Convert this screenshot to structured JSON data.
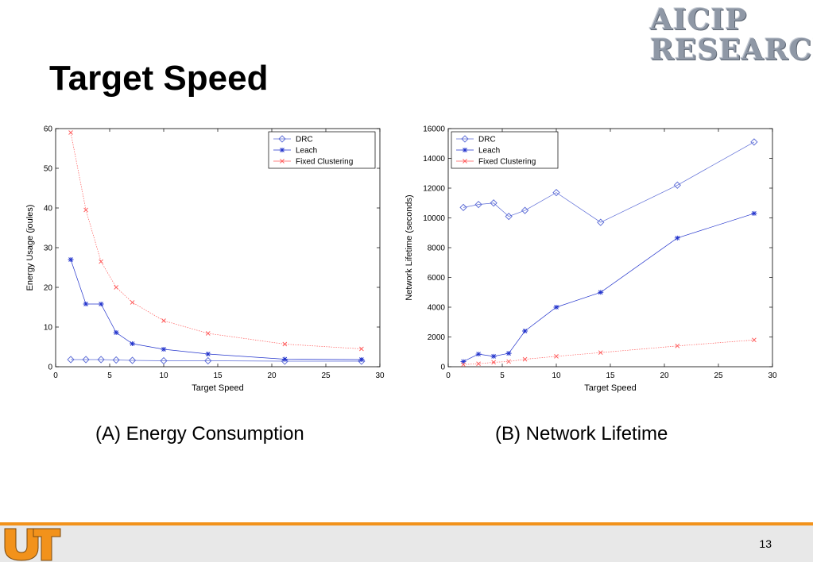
{
  "slide": {
    "title": "Target Speed",
    "page_number": "13",
    "logo_lines": [
      "AICIP",
      "RESEARCH"
    ]
  },
  "captions": [
    "(A) Energy Consumption",
    "(B) Network Lifetime"
  ],
  "colors": {
    "drc": "#5b6bd6",
    "leach": "#2233cc",
    "fixed": "#ff5a5a",
    "accent": "#f2921b"
  },
  "chart_data": [
    {
      "type": "line",
      "title": "",
      "xlabel": "Target Speed",
      "ylabel": "Energy Usage (joules)",
      "xlim": [
        0,
        30
      ],
      "ylim": [
        0,
        60
      ],
      "xticks": [
        0,
        5,
        10,
        15,
        20,
        25,
        30
      ],
      "yticks": [
        0,
        10,
        20,
        30,
        40,
        50,
        60
      ],
      "grid": false,
      "legend": "top-right",
      "series": [
        {
          "name": "DRC",
          "marker": "diamond",
          "x": [
            1.4,
            2.8,
            4.2,
            5.6,
            7.1,
            10,
            14.1,
            21.2,
            28.3
          ],
          "y": [
            1.8,
            1.8,
            1.8,
            1.7,
            1.6,
            1.5,
            1.5,
            1.4,
            1.4
          ]
        },
        {
          "name": "Leach",
          "marker": "star",
          "x": [
            1.4,
            2.8,
            4.2,
            5.6,
            7.1,
            10,
            14.1,
            21.2,
            28.3
          ],
          "y": [
            27,
            15.8,
            15.8,
            8.6,
            5.8,
            4.4,
            3.2,
            1.9,
            1.8
          ]
        },
        {
          "name": "Fixed Clustering",
          "marker": "x",
          "x": [
            1.4,
            2.8,
            4.2,
            5.6,
            7.1,
            10,
            14.1,
            21.2,
            28.3
          ],
          "y": [
            59,
            39.5,
            26.5,
            20,
            16.2,
            11.6,
            8.4,
            5.7,
            4.5
          ]
        }
      ]
    },
    {
      "type": "line",
      "title": "",
      "xlabel": "Target Speed",
      "ylabel": "Network Lifetime (seconds)",
      "xlim": [
        0,
        30
      ],
      "ylim": [
        0,
        16000
      ],
      "xticks": [
        0,
        5,
        10,
        15,
        20,
        25,
        30
      ],
      "yticks": [
        0,
        2000,
        4000,
        6000,
        8000,
        10000,
        12000,
        14000,
        16000
      ],
      "grid": false,
      "legend": "top-left",
      "series": [
        {
          "name": "DRC",
          "marker": "diamond",
          "x": [
            1.4,
            2.8,
            4.2,
            5.6,
            7.1,
            10,
            14.1,
            21.2,
            28.3
          ],
          "y": [
            10700,
            10900,
            11000,
            10100,
            10500,
            11700,
            9700,
            12200,
            15100
          ]
        },
        {
          "name": "Leach",
          "marker": "star",
          "x": [
            1.4,
            2.8,
            4.2,
            5.6,
            7.1,
            10,
            14.1,
            21.2,
            28.3
          ],
          "y": [
            350,
            850,
            700,
            900,
            2400,
            4000,
            5000,
            8650,
            10300
          ]
        },
        {
          "name": "Fixed Clustering",
          "marker": "x",
          "x": [
            1.4,
            2.8,
            4.2,
            5.6,
            7.1,
            10,
            14.1,
            21.2,
            28.3
          ],
          "y": [
            150,
            200,
            300,
            350,
            500,
            700,
            950,
            1400,
            1800
          ]
        }
      ]
    }
  ]
}
